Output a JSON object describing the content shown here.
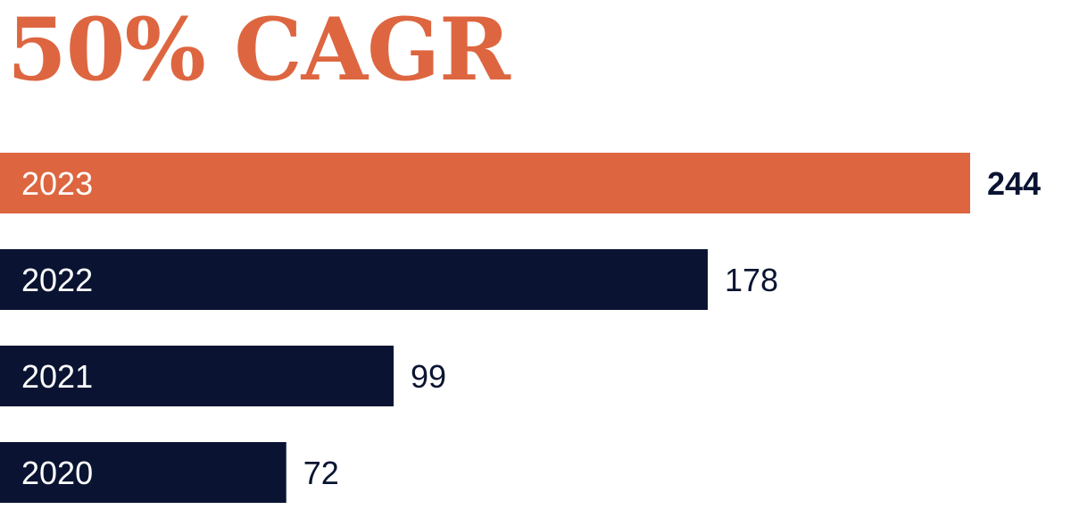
{
  "headline": "50% CAGR",
  "colors": {
    "accent": "#dd6640",
    "bar": "#0a1432",
    "text_dark": "#0a1432",
    "headline": "#dd6640"
  },
  "chart_data": {
    "type": "bar",
    "orientation": "horizontal",
    "categories": [
      "2023",
      "2022",
      "2021",
      "2020"
    ],
    "values": [
      244,
      178,
      99,
      72
    ],
    "highlight_index": 0,
    "title": "50% CAGR",
    "xlabel": "",
    "ylabel": "",
    "xlim": [
      0,
      244
    ],
    "grid": false,
    "legend": "none"
  }
}
